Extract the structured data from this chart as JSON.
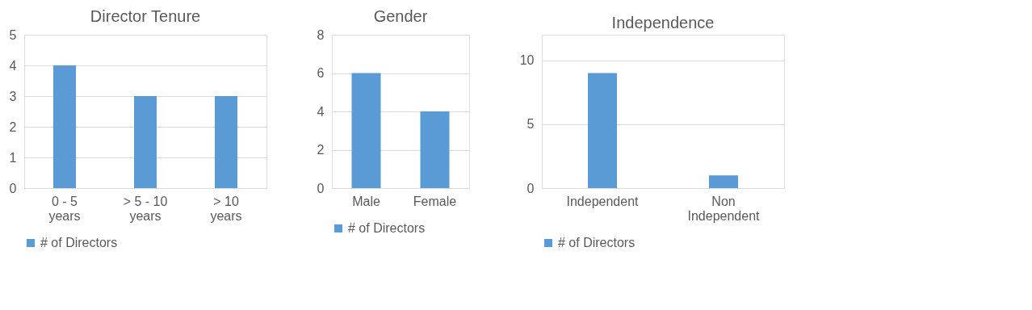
{
  "chart_data": [
    {
      "type": "bar",
      "title": "Director Tenure",
      "categories": [
        "0 - 5 years",
        "> 5 - 10 years",
        ">  10 years"
      ],
      "series": [
        {
          "name": "# of Directors",
          "color": "#5b9bd5",
          "values": [
            4,
            3,
            3
          ]
        }
      ],
      "ylim": [
        0,
        5
      ],
      "yticks": [
        0,
        1,
        2,
        3,
        4,
        5
      ],
      "grid": "y",
      "legend": "bottom"
    },
    {
      "type": "bar",
      "title": "Gender",
      "categories": [
        "Male",
        "Female"
      ],
      "series": [
        {
          "name": "# of Directors",
          "color": "#5b9bd5",
          "values": [
            6,
            4
          ]
        }
      ],
      "ylim": [
        0,
        8
      ],
      "yticks": [
        0,
        2,
        4,
        6,
        8
      ],
      "grid": "y",
      "legend": "bottom"
    },
    {
      "type": "bar",
      "title": "Independence",
      "categories": [
        "Independent",
        "Non Independent"
      ],
      "series": [
        {
          "name": "# of Directors",
          "color": "#5b9bd5",
          "values": [
            9,
            1
          ]
        }
      ],
      "ylim": [
        0,
        12
      ],
      "yticks": [
        0,
        5,
        10
      ],
      "grid": "y",
      "legend": "bottom"
    }
  ]
}
